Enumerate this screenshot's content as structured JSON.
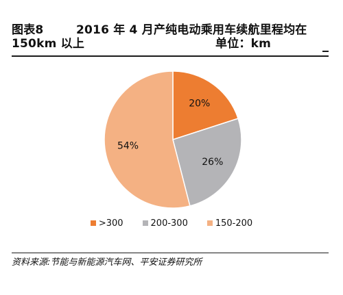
{
  "title": {
    "prefix": "图表8",
    "line1": "2016 年 4 月产纯电动乘用车续航里程均在",
    "line2": "150km 以上",
    "unit": "单位：km"
  },
  "source": "资料来源:节能与新能源汽车网、平安证券研究所",
  "colors": {
    "accent_rules": "#1a1a1a"
  },
  "chart_data": {
    "type": "pie",
    "title": "",
    "start_angle_deg": 0,
    "direction": "clockwise",
    "slices": [
      {
        "label": ">300",
        "value": 20,
        "display": "20%",
        "color": "#ED7D31"
      },
      {
        "label": "200-300",
        "value": 26,
        "display": "26%",
        "color": "#B4B4B7"
      },
      {
        "label": "150-200",
        "value": 54,
        "display": "54%",
        "color": "#F4B183"
      }
    ],
    "legend_placement": "bottom"
  }
}
